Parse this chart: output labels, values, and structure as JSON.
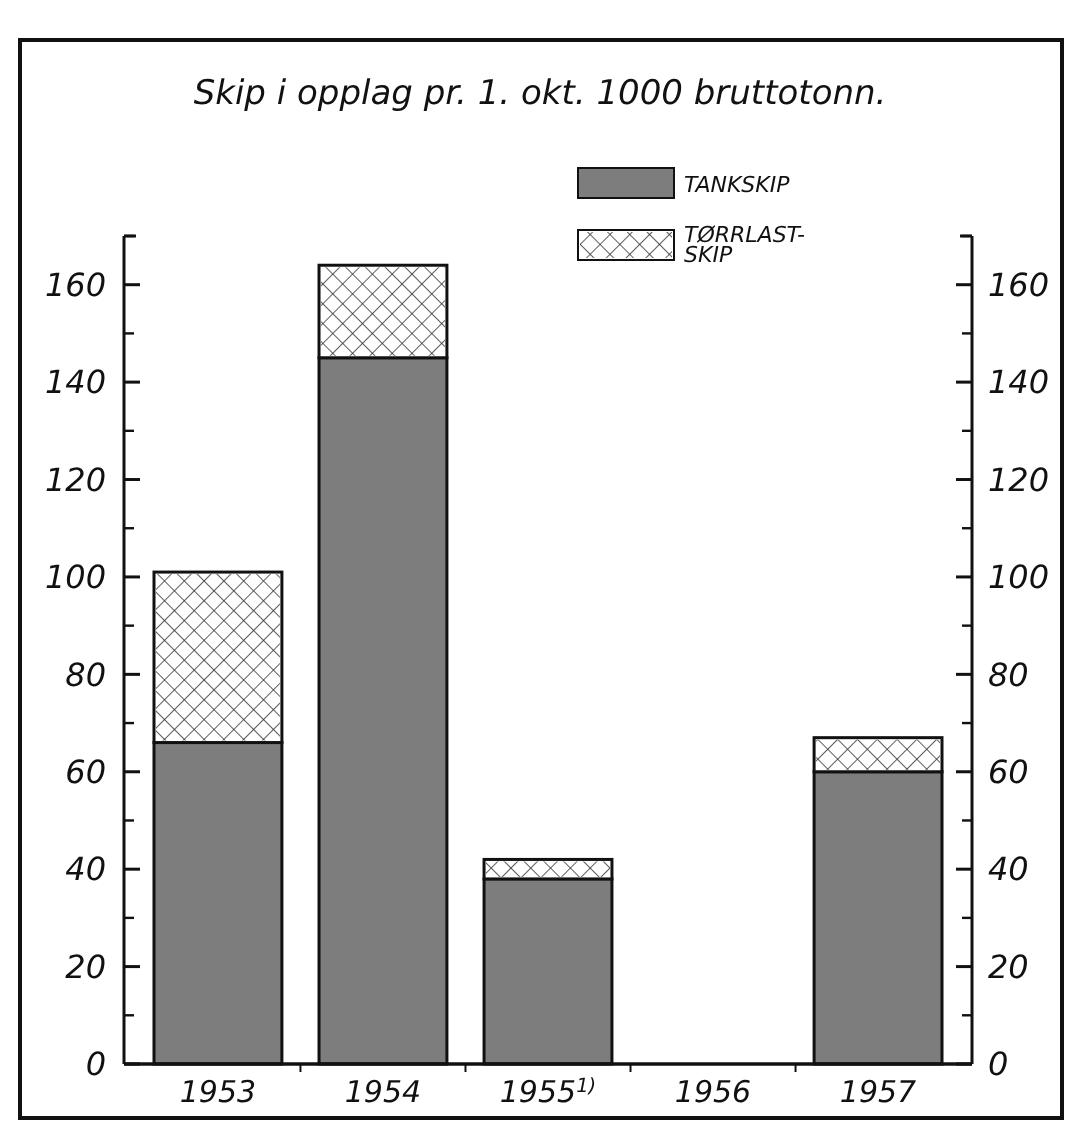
{
  "chart_data": {
    "type": "bar",
    "title": "Skip i opplag pr. 1. okt. 1000 bruttotonn.",
    "categories": [
      "1953",
      "1954",
      "1955$^{1)}$",
      "1956",
      "1957"
    ],
    "stacked": true,
    "series": [
      {
        "name": "TANKSKIP",
        "color": "#7d7d7d",
        "values": [
          66,
          145,
          38,
          null,
          60
        ]
      },
      {
        "name": "TØRRLAST-SKIP",
        "color": "#ffffff",
        "values": [
          35,
          19,
          4,
          null,
          7
        ]
      }
    ],
    "ylim": [
      0,
      170
    ],
    "yticks": [
      0,
      20,
      40,
      60,
      80,
      100,
      120,
      140,
      160
    ],
    "y2lim": [
      0,
      170
    ],
    "y2ticks": [
      0,
      20,
      40,
      60,
      80,
      100,
      120,
      140,
      160
    ],
    "grid": false,
    "legend": "top right"
  }
}
